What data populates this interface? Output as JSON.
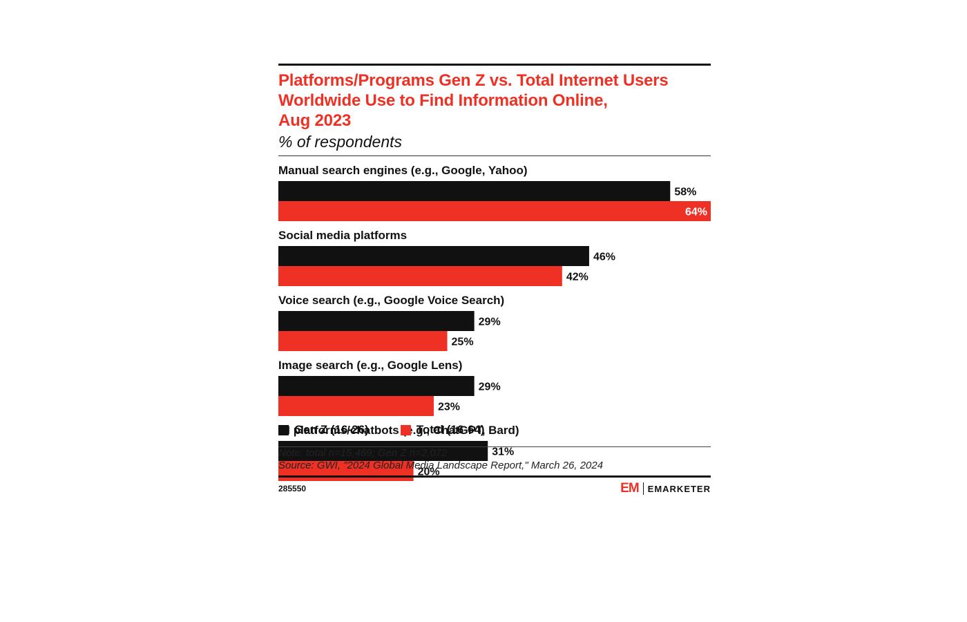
{
  "chart_data": {
    "type": "bar",
    "orientation": "horizontal",
    "title": "Platforms/Programs Gen Z vs. Total Internet Users\nWorldwide Use to Find Information Online,\nAug 2023",
    "subtitle": "% of respondents",
    "categories": [
      "Manual search engines (e.g., Google, Yahoo)",
      "Social media platforms",
      "Voice search (e.g., Google Voice Search)",
      "Image search (e.g., Google Lens)",
      "AI platforms/chatbots (e.g., ChatGPT, Bard)"
    ],
    "series": [
      {
        "name": "Gen Z (16-26)",
        "color": "#111111",
        "values": [
          58,
          46,
          29,
          29,
          31
        ],
        "labels": [
          "58%",
          "46%",
          "29%",
          "29%",
          "31%"
        ]
      },
      {
        "name": "Total (16-64)",
        "color": "#ee3124",
        "values": [
          64,
          42,
          25,
          23,
          20
        ],
        "labels": [
          "64%",
          "42%",
          "25%",
          "23%",
          "20%"
        ]
      }
    ],
    "xlim": [
      0,
      64
    ],
    "grid": false,
    "legend_position": "bottom-left",
    "data_labels": "outside end, inside end when bar reaches maximum"
  },
  "notes": {
    "note": "Note: total n=15,469; Gen Z n=2,072",
    "source": "Source: GWI, \"2024 Global Media Landscape Report,\" March 26, 2024"
  },
  "footer": {
    "chart_id": "285550",
    "brand_mark": "EM",
    "brand_name": "EMARKETER"
  },
  "colors": {
    "accent": "#ee3124",
    "ink": "#111111"
  }
}
